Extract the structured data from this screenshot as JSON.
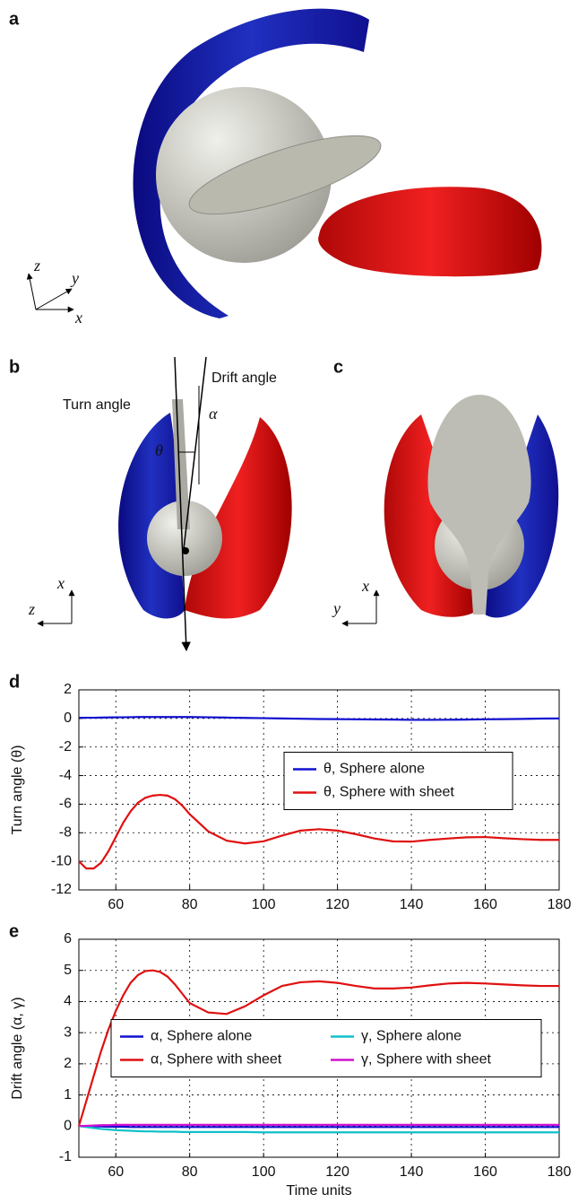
{
  "panels": {
    "a": {
      "label": "a",
      "axes": [
        "z",
        "y",
        "x"
      ]
    },
    "b": {
      "label": "b",
      "turn_angle": "Turn angle",
      "drift_angle": "Drift angle",
      "alpha": "α",
      "theta": "θ",
      "axes": [
        "x",
        "z"
      ]
    },
    "c": {
      "label": "c",
      "axes": [
        "x",
        "y"
      ]
    }
  },
  "chart_data": [
    {
      "type": "line",
      "panel_label": "d",
      "ylabel": "Turn angle (θ)",
      "x": [
        50,
        52,
        54,
        56,
        58,
        60,
        62,
        64,
        66,
        68,
        70,
        72,
        74,
        76,
        78,
        80,
        85,
        90,
        95,
        100,
        105,
        110,
        115,
        120,
        125,
        130,
        135,
        140,
        145,
        150,
        155,
        160,
        165,
        170,
        175,
        180
      ],
      "series": [
        {
          "name": "θ, Sphere alone",
          "color": "#1010d0",
          "values": [
            0.05,
            0.05,
            0.05,
            0.06,
            0.07,
            0.08,
            0.08,
            0.09,
            0.1,
            0.1,
            0.1,
            0.1,
            0.1,
            0.1,
            0.1,
            0.1,
            0.08,
            0.06,
            0.04,
            0.02,
            0,
            -0.02,
            -0.04,
            -0.05,
            -0.06,
            -0.07,
            -0.08,
            -0.1,
            -0.1,
            -0.09,
            -0.08,
            -0.06,
            -0.05,
            -0.03,
            -0.01,
            0
          ]
        },
        {
          "name": "θ, Sphere with sheet",
          "color": "#e01010",
          "values": [
            -10,
            -10.5,
            -10.5,
            -10.1,
            -9.3,
            -8.3,
            -7.3,
            -6.5,
            -5.9,
            -5.55,
            -5.4,
            -5.35,
            -5.4,
            -5.65,
            -6.1,
            -6.7,
            -7.9,
            -8.55,
            -8.75,
            -8.6,
            -8.2,
            -7.85,
            -7.75,
            -7.85,
            -8.1,
            -8.4,
            -8.6,
            -8.62,
            -8.5,
            -8.4,
            -8.32,
            -8.3,
            -8.38,
            -8.45,
            -8.5,
            -8.5
          ]
        }
      ],
      "xlim": [
        50,
        180
      ],
      "xticks": [
        60,
        80,
        100,
        120,
        140,
        160,
        180
      ],
      "ylim": [
        -12,
        2
      ],
      "yticks": [
        -12,
        -10,
        -8,
        -6,
        -4,
        -2,
        0,
        2
      ],
      "grid": true,
      "legend": "center right",
      "legend_columns": 1
    },
    {
      "type": "line",
      "panel_label": "e",
      "xlabel": "Time units",
      "ylabel": "Drift angle (α, γ)",
      "x": [
        50,
        52,
        54,
        56,
        58,
        60,
        62,
        64,
        66,
        68,
        70,
        72,
        74,
        76,
        78,
        80,
        85,
        90,
        95,
        100,
        105,
        110,
        115,
        120,
        125,
        130,
        135,
        140,
        145,
        150,
        155,
        160,
        165,
        170,
        175,
        180
      ],
      "series": [
        {
          "name": "α, Sphere alone",
          "color": "#1010d0",
          "values": [
            0,
            0,
            -0.01,
            -0.01,
            -0.02,
            -0.02,
            -0.02,
            -0.03,
            -0.03,
            -0.03,
            -0.03,
            -0.03,
            -0.03,
            -0.03,
            -0.03,
            -0.03,
            -0.03,
            -0.03,
            -0.03,
            -0.03,
            -0.03,
            -0.03,
            -0.03,
            -0.03,
            -0.03,
            -0.03,
            -0.03,
            -0.03,
            -0.03,
            -0.03,
            -0.03,
            -0.03,
            -0.03,
            -0.03,
            -0.03,
            -0.03
          ]
        },
        {
          "name": "α, Sphere with sheet",
          "color": "#e01010",
          "values": [
            0,
            0.8,
            1.6,
            2.4,
            3.1,
            3.7,
            4.2,
            4.6,
            4.85,
            4.98,
            5,
            4.95,
            4.8,
            4.55,
            4.25,
            3.95,
            3.65,
            3.6,
            3.85,
            4.2,
            4.5,
            4.62,
            4.65,
            4.6,
            4.5,
            4.42,
            4.42,
            4.45,
            4.52,
            4.58,
            4.6,
            4.58,
            4.55,
            4.52,
            4.5,
            4.5
          ]
        },
        {
          "name": "γ, Sphere alone",
          "color": "#10c0c8",
          "values": [
            0,
            -0.03,
            -0.06,
            -0.09,
            -0.11,
            -0.13,
            -0.14,
            -0.15,
            -0.16,
            -0.17,
            -0.17,
            -0.18,
            -0.18,
            -0.18,
            -0.19,
            -0.19,
            -0.19,
            -0.19,
            -0.19,
            -0.2,
            -0.2,
            -0.2,
            -0.2,
            -0.2,
            -0.2,
            -0.2,
            -0.2,
            -0.2,
            -0.2,
            -0.2,
            -0.2,
            -0.2,
            -0.2,
            -0.2,
            -0.2,
            -0.2
          ]
        },
        {
          "name": "γ, Sphere with sheet",
          "color": "#d010d0",
          "values": [
            0,
            0.01,
            0.02,
            0.03,
            0.03,
            0.04,
            0.04,
            0.04,
            0.04,
            0.04,
            0.04,
            0.04,
            0.04,
            0.04,
            0.04,
            0.04,
            0.04,
            0.04,
            0.04,
            0.04,
            0.04,
            0.04,
            0.04,
            0.04,
            0.04,
            0.04,
            0.04,
            0.04,
            0.04,
            0.04,
            0.04,
            0.04,
            0.04,
            0.04,
            0.04,
            0.04
          ]
        }
      ],
      "xlim": [
        50,
        180
      ],
      "xticks": [
        60,
        80,
        100,
        120,
        140,
        160,
        180
      ],
      "ylim": [
        -1,
        6
      ],
      "yticks": [
        -1,
        0,
        1,
        2,
        3,
        4,
        5,
        6
      ],
      "grid": true,
      "legend": "center",
      "legend_columns": 2
    }
  ]
}
